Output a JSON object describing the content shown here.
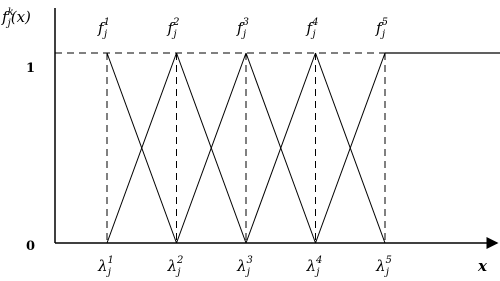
{
  "y_axis_label": {
    "base": "f",
    "sub": "j",
    "sup": "k",
    "arg": "(x)"
  },
  "y_levels": {
    "high": "1",
    "low": "0"
  },
  "x_axis_label": "x",
  "functions": [
    {
      "base": "f",
      "sub": "j",
      "sup": "1"
    },
    {
      "base": "f",
      "sub": "j",
      "sup": "2"
    },
    {
      "base": "f",
      "sub": "j",
      "sup": "3"
    },
    {
      "base": "f",
      "sub": "j",
      "sup": "4"
    },
    {
      "base": "f",
      "sub": "j",
      "sup": "5"
    }
  ],
  "points": [
    {
      "base": "λ",
      "sub": "j",
      "sup": "1"
    },
    {
      "base": "λ",
      "sub": "j",
      "sup": "2"
    },
    {
      "base": "λ",
      "sub": "j",
      "sup": "3"
    },
    {
      "base": "λ",
      "sub": "j",
      "sup": "4"
    },
    {
      "base": "λ",
      "sub": "j",
      "sup": "5"
    }
  ]
}
